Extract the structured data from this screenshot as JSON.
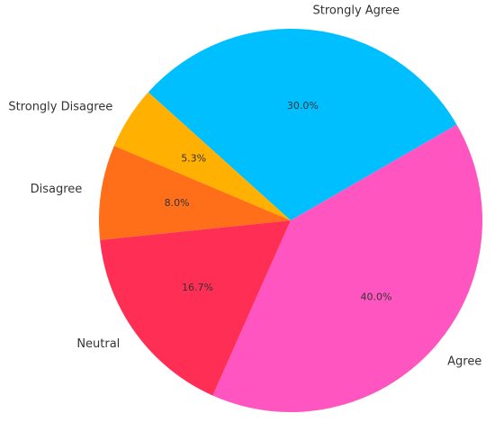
{
  "chart_data": {
    "type": "pie",
    "categories": [
      "Strongly Agree",
      "Strongly Disagree",
      "Disagree",
      "Neutral",
      "Agree"
    ],
    "values": [
      30.0,
      5.3,
      8.0,
      16.7,
      40.0
    ],
    "value_labels": [
      "30.0%",
      "5.3%",
      "8.0%",
      "16.7%",
      "40.0%"
    ],
    "colors": [
      "#00bfff",
      "#ffb000",
      "#ff6f1a",
      "#ff2e55",
      "#ff55c0"
    ]
  }
}
